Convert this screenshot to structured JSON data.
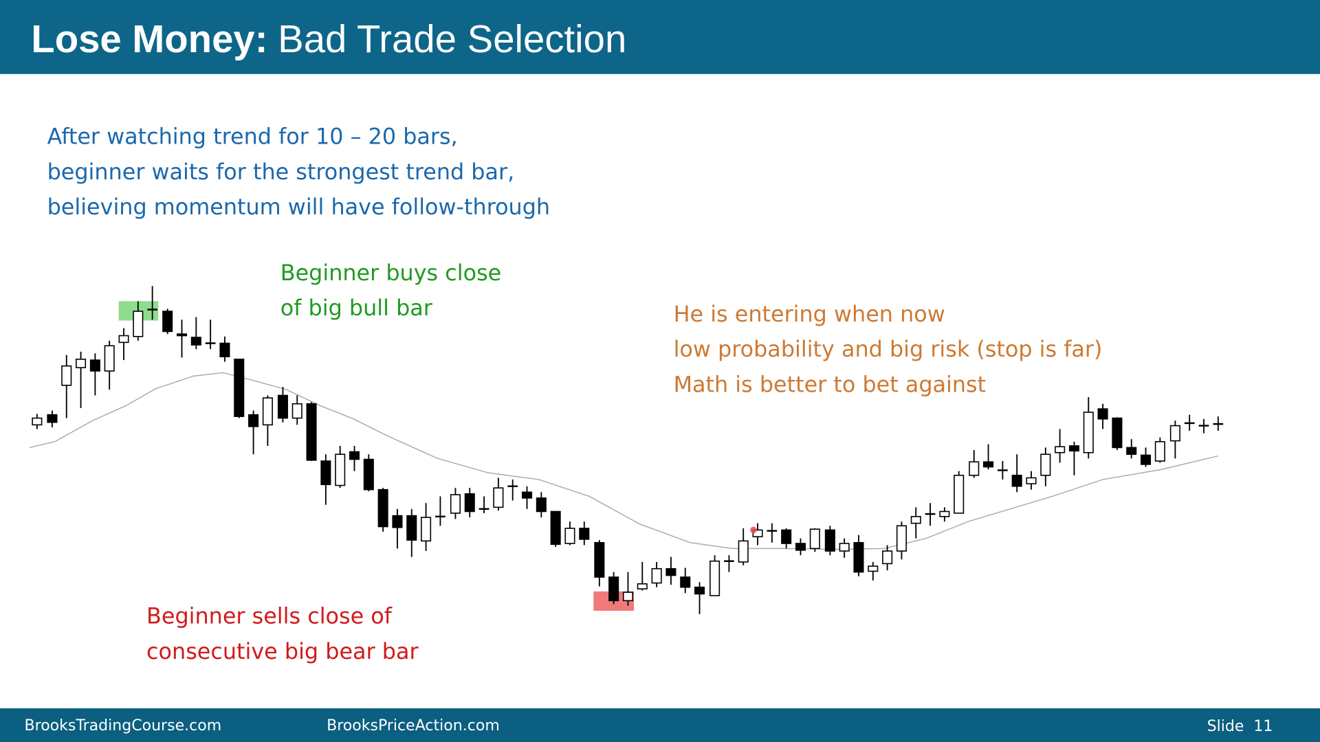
{
  "header": {
    "title_bold": "Lose Money:",
    "title_rest": "Bad Trade Selection"
  },
  "notes": {
    "intro": [
      "After watching trend for 10 – 20 bars,",
      "beginner waits for the strongest trend bar,",
      "believing momentum will have follow-through"
    ],
    "buy": [
      "Beginner buys close",
      "of big bull bar"
    ],
    "warning": [
      "He is entering when now",
      "low probability and big risk (stop is far)",
      "Math is better to bet against"
    ],
    "sell": [
      "Beginner sells close of",
      "consecutive big bear bar"
    ]
  },
  "footer": {
    "site1": "BrooksTradingCourse.com",
    "site2": "BrooksPriceAction.com",
    "slide": "Slide  11"
  }
}
